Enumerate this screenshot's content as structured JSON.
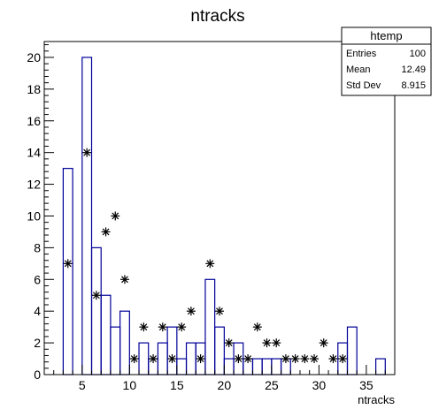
{
  "chart_data": {
    "type": "histogram",
    "title": "ntracks",
    "xlabel": "ntracks",
    "ylabel": "",
    "xlim": [
      1,
      38
    ],
    "ylim": [
      0,
      21
    ],
    "x_ticks": [
      5,
      10,
      15,
      20,
      25,
      30,
      35
    ],
    "y_ticks": [
      0,
      2,
      4,
      6,
      8,
      10,
      12,
      14,
      16,
      18,
      20
    ],
    "series": [
      {
        "style": "step-histogram",
        "color": "#000099",
        "bin_edges": [
          3,
          4,
          5,
          6,
          7,
          8,
          9,
          10,
          11,
          12,
          13,
          14,
          15,
          16,
          17,
          18,
          19,
          20,
          21,
          22,
          23,
          24,
          25,
          26,
          27,
          28,
          29,
          30,
          31,
          32,
          33,
          34,
          35,
          36,
          37
        ],
        "counts": [
          13,
          0,
          20,
          8,
          5,
          3,
          4,
          0,
          2,
          1,
          2,
          3,
          1,
          2,
          2,
          6,
          3,
          1,
          2,
          1,
          1,
          1,
          1,
          1,
          0,
          0,
          0,
          0,
          0,
          2,
          3,
          0,
          0,
          1
        ]
      },
      {
        "style": "star-markers",
        "color": "#000000",
        "points": [
          [
            3.5,
            7
          ],
          [
            5.5,
            14
          ],
          [
            6.5,
            5
          ],
          [
            7.5,
            9
          ],
          [
            8.5,
            10
          ],
          [
            9.5,
            6
          ],
          [
            10.5,
            1
          ],
          [
            11.5,
            3
          ],
          [
            12.5,
            1
          ],
          [
            13.5,
            3
          ],
          [
            14.5,
            1
          ],
          [
            15.5,
            3
          ],
          [
            16.5,
            4
          ],
          [
            17.5,
            1
          ],
          [
            18.5,
            7
          ],
          [
            19.5,
            4
          ],
          [
            20.5,
            2
          ],
          [
            21.5,
            1
          ],
          [
            22.5,
            1
          ],
          [
            23.5,
            3
          ],
          [
            24.5,
            2
          ],
          [
            25.5,
            2
          ],
          [
            26.5,
            1
          ],
          [
            27.5,
            1
          ],
          [
            28.5,
            1
          ],
          [
            29.5,
            1
          ],
          [
            30.5,
            2
          ],
          [
            31.5,
            1
          ],
          [
            32.5,
            1
          ]
        ]
      }
    ],
    "stats_box": {
      "title": "htemp",
      "rows": [
        {
          "label": "Entries",
          "value": "100"
        },
        {
          "label": "Mean",
          "value": "12.49"
        },
        {
          "label": "Std Dev",
          "value": "8.915"
        }
      ]
    },
    "grid": false,
    "legend": "top-right"
  }
}
